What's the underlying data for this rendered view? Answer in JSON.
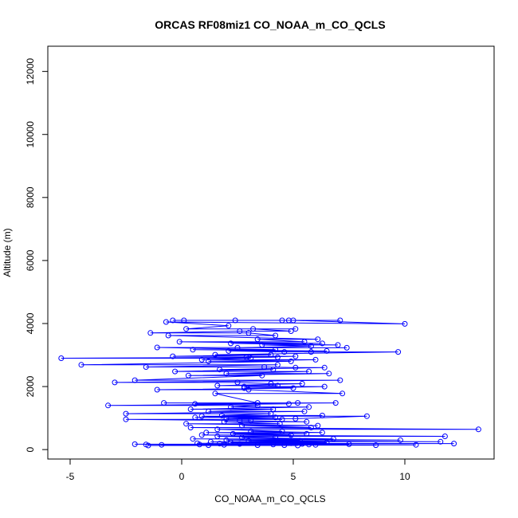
{
  "chart_data": {
    "type": "line",
    "title": "ORCAS RF08miz1 CO_NOAA_m_CO_QCLS",
    "xlabel": "CO_NOAA_m_CO_QCLS",
    "ylabel": "Altitude (m)",
    "xlim": [
      -6,
      14
    ],
    "ylim": [
      -300,
      12800
    ],
    "xticks": [
      -5,
      0,
      5,
      10
    ],
    "xtick_labels": [
      "-5",
      "0",
      "5",
      "10"
    ],
    "yticks": [
      0,
      2000,
      4000,
      6000,
      8000,
      10000,
      12000
    ],
    "ytick_labels": [
      "0",
      "2000",
      "4000",
      "6000",
      "8000",
      "10000",
      "12000"
    ],
    "series_color": "#0000ff",
    "marker": "open-circle",
    "grid": false,
    "series": [
      {
        "x": [
          -0.4,
          7.1,
          0.1,
          4.5,
          2.4,
          4.8,
          5.0,
          10.0,
          -0.7,
          2.1,
          0.2,
          5.1,
          3.2,
          4.9,
          2.6,
          -1.4,
          3.0,
          4.2,
          -0.6,
          6.1,
          3.4,
          5.5,
          -0.1,
          6.3,
          2.2,
          7.0,
          3.6,
          5.8,
          2.5,
          7.4,
          -1.1,
          4.2,
          0.5,
          6.5,
          2.1,
          4.6,
          5.8,
          9.7,
          1.5,
          4.0,
          -0.4,
          5.1,
          2.9,
          4.3,
          -5.4,
          3.1,
          0.9,
          6.0,
          1.2,
          4.9,
          -4.5,
          4.3,
          -1.6,
          3.7,
          5.1,
          6.4,
          1.7,
          4.1,
          -0.3,
          5.7,
          2.0,
          6.6,
          0.3,
          3.6,
          -2.1,
          7.1,
          -3.0,
          2.5,
          4.0,
          5.4,
          1.6,
          4.3,
          2.8,
          6.4,
          2.8,
          5.0,
          -1.1,
          3.0,
          7.2,
          1.5,
          3.4,
          5.2,
          -0.8,
          6.9,
          0.6,
          4.8,
          -3.3,
          3.4,
          2.2,
          5.7,
          0.4,
          4.1,
          1.2,
          5.5,
          -2.5,
          4.0,
          1.8,
          6.3,
          0.6,
          4.2,
          2.0,
          5.1,
          8.3,
          0.9,
          4.5,
          -2.5,
          3.1,
          2.6,
          5.6,
          1.9,
          4.4,
          0.2,
          6.1,
          2.7,
          5.8,
          0.4,
          13.3,
          1.6,
          4.5,
          3.1,
          6.3,
          1.1,
          5.6,
          2.3,
          4.9,
          0.9,
          11.8,
          1.6,
          4.2,
          2.7,
          6.8,
          0.5,
          9.8,
          2.0,
          5.3,
          3.0,
          11.6,
          1.3,
          6.5,
          2.2,
          4.9,
          0.7,
          12.2,
          1.7,
          5.4,
          2.6,
          7.5,
          -2.1,
          4.1,
          -1.6,
          5.7,
          0.8,
          10.5,
          1.9,
          6.0,
          -0.9,
          4.6,
          3.4,
          8.7,
          1.2,
          5.2,
          -1.5
        ],
        "y": [
          4100,
          4100,
          4100,
          4100,
          4100,
          4100,
          4100,
          3990,
          4050,
          3930,
          3830,
          3830,
          3830,
          3760,
          3760,
          3700,
          3700,
          3620,
          3620,
          3500,
          3500,
          3420,
          3420,
          3370,
          3370,
          3320,
          3320,
          3280,
          3230,
          3230,
          3240,
          3170,
          3170,
          3130,
          3130,
          3100,
          3100,
          3100,
          3010,
          3010,
          2960,
          2960,
          2930,
          2930,
          2900,
          2900,
          2850,
          2850,
          2800,
          2800,
          2690,
          2690,
          2620,
          2620,
          2600,
          2600,
          2540,
          2540,
          2480,
          2480,
          2410,
          2410,
          2350,
          2350,
          2200,
          2200,
          2130,
          2130,
          2090,
          2090,
          2030,
          2030,
          2000,
          2000,
          1950,
          1950,
          1900,
          1900,
          1780,
          1780,
          1480,
          1480,
          1480,
          1480,
          1450,
          1450,
          1400,
          1400,
          1350,
          1350,
          1280,
          1280,
          1210,
          1210,
          1140,
          1140,
          1080,
          1080,
          1020,
          1020,
          980,
          980,
          1060,
          1060,
          960,
          960,
          920,
          920,
          880,
          880,
          820,
          820,
          760,
          760,
          700,
          700,
          640,
          640,
          580,
          580,
          540,
          540,
          500,
          500,
          460,
          460,
          420,
          420,
          380,
          380,
          340,
          340,
          300,
          300,
          280,
          280,
          250,
          250,
          220,
          220,
          200,
          200,
          190,
          190,
          180,
          180,
          170,
          170,
          160,
          160,
          160,
          160,
          150,
          150,
          150,
          150,
          140,
          140,
          140,
          140,
          130,
          130
        ]
      }
    ]
  }
}
